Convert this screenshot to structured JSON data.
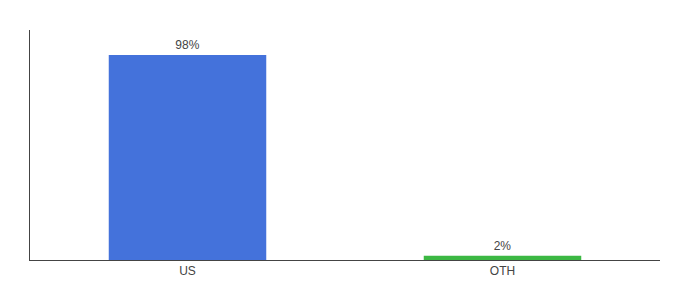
{
  "chart_data": {
    "type": "bar",
    "categories": [
      "US",
      "OTH"
    ],
    "values": [
      98,
      2
    ],
    "value_labels": [
      "98%",
      "2%"
    ],
    "colors": [
      "#4472db",
      "#3cb843"
    ],
    "ylim": [
      0,
      110
    ],
    "data_labels": true,
    "tick_labels": "x",
    "grid": false
  }
}
